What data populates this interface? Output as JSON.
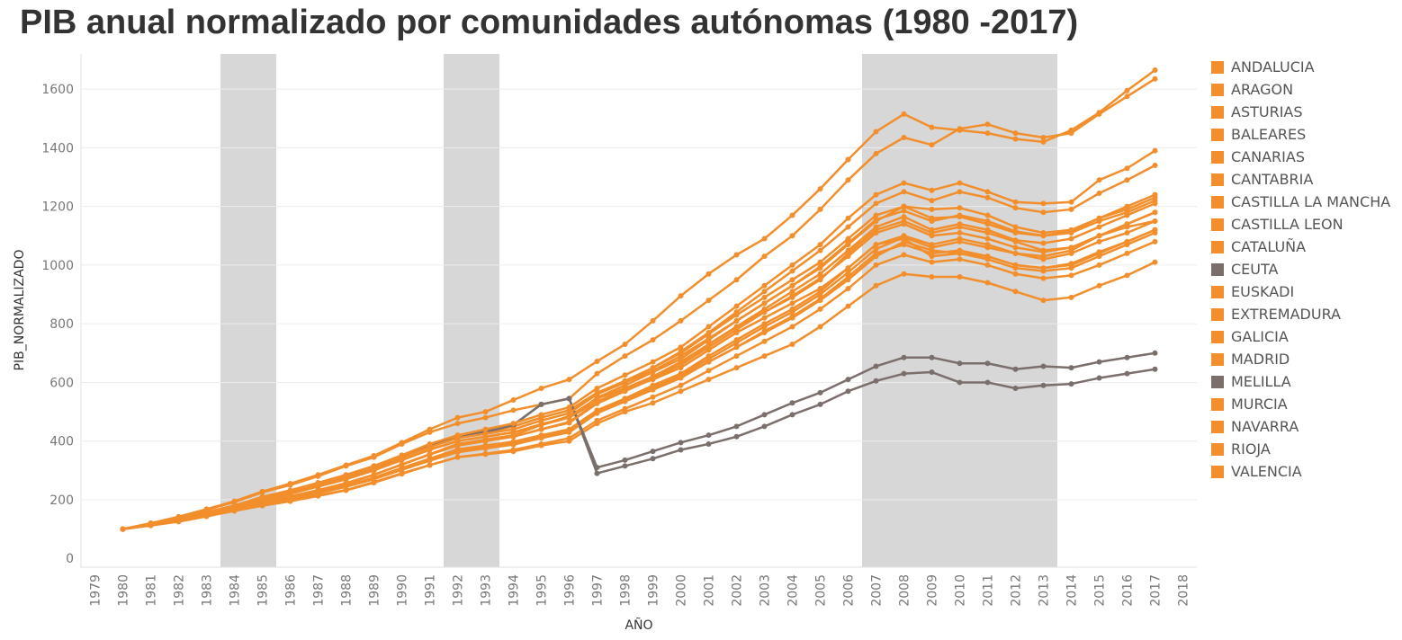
{
  "chart_data": {
    "type": "line",
    "title": "PIB anual normalizado por comunidades autónomas (1980 -2017)",
    "xlabel": "AÑO",
    "ylabel": "PIB_NORMALIZADO",
    "xlim": [
      1979,
      2018
    ],
    "ylim": [
      -30,
      1720
    ],
    "x_ticks": [
      1979,
      1980,
      1981,
      1982,
      1983,
      1984,
      1985,
      1986,
      1987,
      1988,
      1989,
      1990,
      1991,
      1992,
      1993,
      1994,
      1995,
      1996,
      1997,
      1998,
      1999,
      2000,
      2001,
      2002,
      2003,
      2004,
      2005,
      2006,
      2007,
      2008,
      2009,
      2010,
      2011,
      2012,
      2013,
      2014,
      2015,
      2016,
      2017,
      2018
    ],
    "y_ticks": [
      0,
      200,
      400,
      600,
      800,
      1000,
      1200,
      1400,
      1600
    ],
    "grid": "horizontal",
    "legend_position": "right",
    "colors": {
      "orange": "#f28e2b",
      "gray": "#7b6f6c",
      "band": "#d7d7d7"
    },
    "shaded_periods": [
      [
        1984,
        1985
      ],
      [
        1992,
        1993
      ],
      [
        2007,
        2013
      ]
    ],
    "x": [
      1980,
      1981,
      1982,
      1983,
      1984,
      1985,
      1986,
      1987,
      1988,
      1989,
      1990,
      1991,
      1992,
      1993,
      1994,
      1995,
      1996,
      1997,
      1998,
      1999,
      2000,
      2001,
      2002,
      2003,
      2004,
      2005,
      2006,
      2007,
      2008,
      2009,
      2010,
      2011,
      2012,
      2013,
      2014,
      2015,
      2016,
      2017
    ],
    "series": [
      {
        "name": "ANDALUCIA",
        "color": "#f28e2b",
        "values": [
          100,
          115,
          130,
          150,
          170,
          195,
          210,
          232,
          255,
          285,
          320,
          355,
          390,
          405,
          420,
          455,
          485,
          545,
          580,
          620,
          660,
          730,
          790,
          840,
          890,
          950,
          1040,
          1120,
          1150,
          1110,
          1130,
          1110,
          1080,
          1050,
          1060,
          1100,
          1130,
          1150
        ]
      },
      {
        "name": "ARAGON",
        "color": "#f28e2b",
        "values": [
          100,
          118,
          135,
          157,
          180,
          210,
          232,
          258,
          285,
          315,
          350,
          385,
          415,
          430,
          450,
          480,
          505,
          560,
          600,
          640,
          690,
          750,
          810,
          870,
          930,
          990,
          1070,
          1150,
          1200,
          1190,
          1195,
          1170,
          1130,
          1110,
          1120,
          1160,
          1190,
          1230
        ]
      },
      {
        "name": "ASTURIAS",
        "color": "#f28e2b",
        "values": [
          100,
          113,
          127,
          145,
          162,
          180,
          195,
          215,
          233,
          260,
          290,
          318,
          345,
          355,
          365,
          385,
          400,
          460,
          500,
          530,
          570,
          610,
          650,
          690,
          730,
          790,
          860,
          930,
          970,
          960,
          960,
          940,
          910,
          880,
          890,
          930,
          965,
          1010
        ]
      },
      {
        "name": "BALEARES",
        "color": "#f28e2b",
        "values": [
          100,
          120,
          142,
          168,
          195,
          228,
          255,
          285,
          318,
          350,
          395,
          440,
          480,
          500,
          540,
          580,
          610,
          672,
          730,
          810,
          895,
          970,
          1035,
          1090,
          1170,
          1260,
          1360,
          1455,
          1515,
          1470,
          1460,
          1450,
          1430,
          1420,
          1460,
          1520,
          1595,
          1665
        ]
      },
      {
        "name": "CANARIAS",
        "color": "#f28e2b",
        "values": [
          100,
          117,
          133,
          155,
          178,
          205,
          225,
          248,
          272,
          300,
          335,
          370,
          400,
          415,
          430,
          455,
          480,
          535,
          575,
          610,
          650,
          710,
          770,
          820,
          870,
          920,
          990,
          1070,
          1090,
          1030,
          1040,
          1020,
          990,
          980,
          990,
          1030,
          1070,
          1110
        ]
      },
      {
        "name": "CANTABRIA",
        "color": "#f28e2b",
        "values": [
          100,
          114,
          129,
          148,
          168,
          187,
          202,
          224,
          245,
          272,
          305,
          335,
          365,
          378,
          392,
          415,
          435,
          500,
          540,
          580,
          620,
          670,
          720,
          770,
          820,
          880,
          950,
          1030,
          1080,
          1050,
          1040,
          1030,
          1000,
          990,
          1000,
          1040,
          1080,
          1120
        ]
      },
      {
        "name": "CASTILLA LA MANCHA",
        "color": "#f28e2b",
        "values": [
          100,
          113,
          128,
          147,
          167,
          188,
          205,
          225,
          248,
          275,
          308,
          340,
          372,
          385,
          398,
          420,
          440,
          505,
          545,
          590,
          630,
          690,
          745,
          800,
          850,
          910,
          990,
          1070,
          1100,
          1070,
          1090,
          1070,
          1040,
          1030,
          1050,
          1100,
          1140,
          1180
        ]
      },
      {
        "name": "CASTILLA LEON",
        "color": "#f28e2b",
        "values": [
          100,
          114,
          129,
          148,
          168,
          189,
          205,
          226,
          248,
          275,
          308,
          340,
          370,
          383,
          396,
          418,
          438,
          502,
          542,
          585,
          625,
          680,
          735,
          790,
          840,
          900,
          975,
          1055,
          1095,
          1060,
          1080,
          1060,
          1040,
          1020,
          1040,
          1080,
          1110,
          1150
        ]
      },
      {
        "name": "CATALUÑA",
        "color": "#f28e2b",
        "values": [
          100,
          118,
          135,
          157,
          178,
          205,
          228,
          255,
          282,
          312,
          348,
          382,
          412,
          430,
          450,
          480,
          505,
          565,
          605,
          650,
          700,
          765,
          830,
          890,
          950,
          1010,
          1090,
          1170,
          1200,
          1160,
          1165,
          1140,
          1110,
          1100,
          1110,
          1150,
          1180,
          1220
        ]
      },
      {
        "name": "CEUTA",
        "color": "#7b6f6c",
        "values": [
          100,
          115,
          132,
          152,
          172,
          200,
          222,
          245,
          270,
          300,
          345,
          385,
          410,
          430,
          455,
          525,
          545,
          290,
          315,
          340,
          370,
          390,
          415,
          450,
          490,
          525,
          570,
          605,
          630,
          635,
          600,
          600,
          580,
          590,
          595,
          615,
          630,
          645
        ]
      },
      {
        "name": "EUSKADI",
        "color": "#f28e2b",
        "values": [
          100,
          116,
          132,
          152,
          172,
          192,
          210,
          232,
          255,
          285,
          320,
          355,
          385,
          400,
          415,
          440,
          465,
          530,
          575,
          620,
          670,
          730,
          790,
          850,
          910,
          970,
          1050,
          1130,
          1165,
          1120,
          1140,
          1120,
          1085,
          1075,
          1090,
          1130,
          1170,
          1210
        ]
      },
      {
        "name": "EXTREMADURA",
        "color": "#f28e2b",
        "values": [
          100,
          112,
          125,
          143,
          162,
          180,
          195,
          213,
          232,
          258,
          288,
          318,
          345,
          357,
          370,
          390,
          410,
          470,
          510,
          550,
          590,
          640,
          690,
          740,
          790,
          850,
          920,
          1000,
          1035,
          1010,
          1020,
          1000,
          970,
          955,
          965,
          1000,
          1040,
          1080
        ]
      },
      {
        "name": "GALICIA",
        "color": "#f28e2b",
        "values": [
          100,
          113,
          128,
          147,
          166,
          186,
          202,
          222,
          244,
          270,
          302,
          333,
          362,
          375,
          388,
          410,
          430,
          495,
          535,
          575,
          615,
          670,
          720,
          775,
          825,
          885,
          960,
          1040,
          1070,
          1040,
          1050,
          1030,
          1000,
          990,
          1005,
          1045,
          1080,
          1120
        ]
      },
      {
        "name": "MADRID",
        "color": "#f28e2b",
        "values": [
          100,
          120,
          140,
          165,
          192,
          225,
          250,
          280,
          315,
          345,
          390,
          430,
          460,
          480,
          505,
          525,
          545,
          630,
          690,
          745,
          810,
          880,
          950,
          1030,
          1100,
          1190,
          1290,
          1380,
          1435,
          1410,
          1465,
          1480,
          1450,
          1435,
          1450,
          1515,
          1575,
          1635
        ]
      },
      {
        "name": "MELILLA",
        "color": "#7b6f6c",
        "values": [
          100,
          116,
          134,
          154,
          172,
          205,
          225,
          248,
          272,
          302,
          345,
          385,
          410,
          435,
          455,
          525,
          545,
          310,
          335,
          365,
          395,
          420,
          450,
          490,
          530,
          565,
          610,
          655,
          685,
          685,
          665,
          665,
          645,
          655,
          650,
          670,
          685,
          700
        ]
      },
      {
        "name": "MURCIA",
        "color": "#f28e2b",
        "values": [
          100,
          115,
          130,
          150,
          170,
          195,
          212,
          233,
          257,
          285,
          320,
          354,
          385,
          400,
          415,
          440,
          462,
          528,
          570,
          612,
          660,
          720,
          780,
          840,
          895,
          955,
          1030,
          1110,
          1140,
          1100,
          1110,
          1090,
          1060,
          1045,
          1060,
          1100,
          1140,
          1180
        ]
      },
      {
        "name": "NAVARRA",
        "color": "#f28e2b",
        "values": [
          100,
          117,
          134,
          155,
          176,
          203,
          225,
          250,
          278,
          308,
          345,
          380,
          410,
          425,
          440,
          470,
          495,
          560,
          600,
          650,
          705,
          770,
          840,
          910,
          980,
          1050,
          1130,
          1210,
          1250,
          1220,
          1250,
          1230,
          1195,
          1180,
          1190,
          1245,
          1290,
          1340
        ]
      },
      {
        "name": "RIOJA",
        "color": "#f28e2b",
        "values": [
          100,
          116,
          133,
          154,
          175,
          200,
          220,
          245,
          270,
          300,
          337,
          372,
          400,
          415,
          430,
          458,
          480,
          548,
          590,
          635,
          680,
          745,
          810,
          870,
          930,
          995,
          1075,
          1155,
          1185,
          1150,
          1170,
          1150,
          1115,
          1100,
          1115,
          1160,
          1200,
          1240
        ]
      },
      {
        "name": "VALENCIA",
        "color": "#f28e2b",
        "values": [
          100,
          118,
          136,
          158,
          180,
          208,
          230,
          256,
          284,
          315,
          352,
          390,
          420,
          440,
          460,
          490,
          515,
          580,
          625,
          670,
          720,
          790,
          860,
          930,
          1000,
          1070,
          1160,
          1240,
          1280,
          1255,
          1280,
          1250,
          1215,
          1210,
          1215,
          1290,
          1330,
          1390
        ]
      }
    ]
  }
}
